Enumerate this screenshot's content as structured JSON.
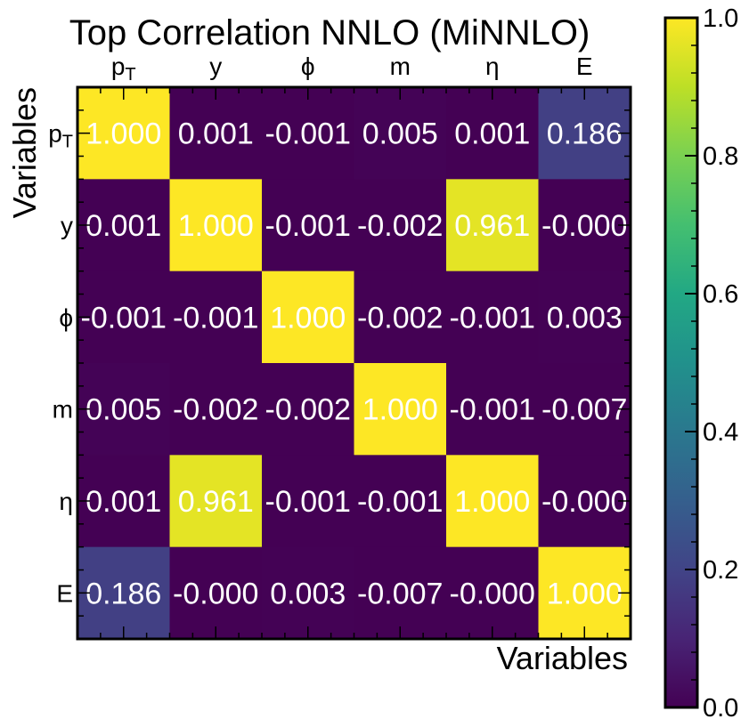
{
  "chart_data": {
    "type": "heatmap",
    "title": "Top Correlation NNLO (MiNNLO)",
    "xlabel": "Variables",
    "ylabel": "Variables",
    "x_tick_labels": [
      "pT",
      "y",
      "ϕ",
      "m",
      "η",
      "E"
    ],
    "y_tick_labels": [
      "pT",
      "y",
      "ϕ",
      "m",
      "η",
      "E"
    ],
    "matrix": [
      [
        1.0,
        0.001,
        -0.001,
        0.005,
        0.001,
        0.186
      ],
      [
        0.001,
        1.0,
        -0.001,
        -0.002,
        0.961,
        -0.0
      ],
      [
        -0.001,
        -0.001,
        1.0,
        -0.002,
        -0.001,
        0.003
      ],
      [
        0.005,
        -0.002,
        -0.002,
        1.0,
        -0.001,
        -0.007
      ],
      [
        0.001,
        0.961,
        -0.001,
        -0.001,
        1.0,
        -0.0
      ],
      [
        0.186,
        -0.0,
        0.003,
        -0.007,
        -0.0,
        1.0
      ]
    ],
    "cell_labels": [
      [
        "1.000",
        "0.001",
        "-0.001",
        "0.005",
        "0.001",
        "0.186"
      ],
      [
        "0.001",
        "1.000",
        "-0.001",
        "-0.002",
        "0.961",
        "-0.000"
      ],
      [
        "-0.001",
        "-0.001",
        "1.000",
        "-0.002",
        "-0.001",
        "0.003"
      ],
      [
        "0.005",
        "-0.002",
        "-0.002",
        "1.000",
        "-0.001",
        "-0.007"
      ],
      [
        "0.001",
        "0.961",
        "-0.001",
        "-0.001",
        "1.000",
        "-0.000"
      ],
      [
        "0.186",
        "-0.000",
        "0.003",
        "-0.007",
        "-0.000",
        "1.000"
      ]
    ],
    "colorbar": {
      "colormap": "viridis",
      "range": [
        0.0,
        1.0
      ],
      "ticks": [
        0.0,
        0.2,
        0.4,
        0.6,
        0.8,
        1.0
      ],
      "tick_labels": [
        "0.0",
        "0.2",
        "0.4",
        "0.6",
        "0.8",
        "1.0"
      ]
    },
    "x_tick_position": "top",
    "grid": false
  }
}
